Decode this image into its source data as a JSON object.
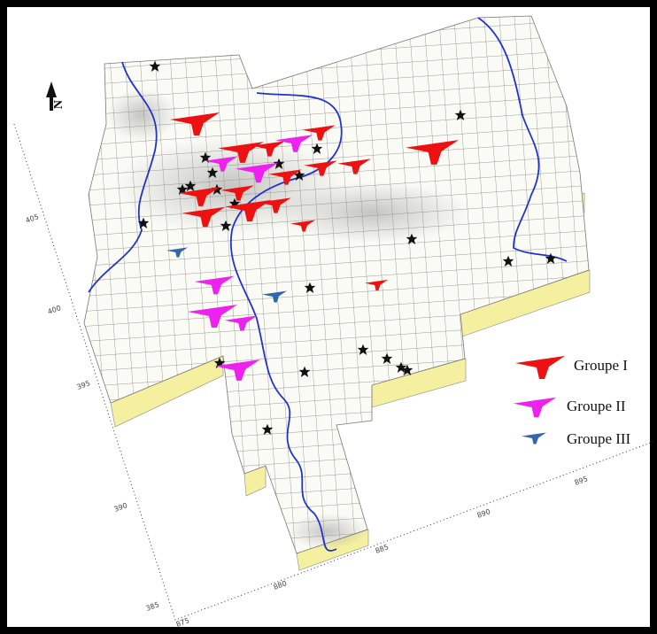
{
  "north": "N",
  "legend": [
    {
      "label": "Groupe I"
    },
    {
      "label": "Groupe II"
    },
    {
      "label": "Groupe III"
    }
  ],
  "axis_left": {
    "labels": [
      "405",
      "400",
      "395",
      "390",
      "385"
    ]
  },
  "axis_bottom": {
    "labels": [
      "875",
      "880",
      "885",
      "890",
      "895"
    ]
  }
}
